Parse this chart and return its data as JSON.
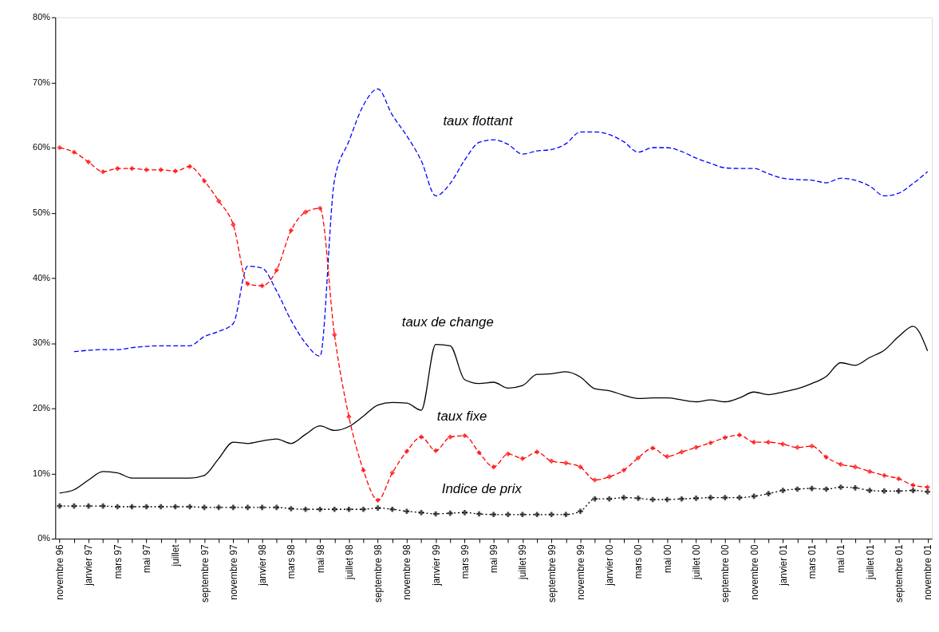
{
  "chart_data": {
    "type": "line",
    "categories": [
      "novembre 96",
      null,
      "janvier 97",
      null,
      "mars 97",
      null,
      "mai 97",
      null,
      "juillet",
      null,
      "septembre 97",
      null,
      "novembre 97",
      null,
      "janvier 98",
      null,
      "mars 98",
      null,
      "mai 98",
      null,
      "juillet 98",
      null,
      "septembre 98",
      null,
      "novembre 98",
      null,
      "janvier 99",
      null,
      "mars 99",
      null,
      "mai 99",
      null,
      "juillet 99",
      null,
      "septembre 99",
      null,
      "novembre 99",
      null,
      "janvier 00",
      null,
      "mars 00",
      null,
      "mai 00",
      null,
      "juillet 00",
      null,
      "septembre 00",
      null,
      "novembre 00",
      null,
      "janvier 01",
      null,
      "mars 01",
      null,
      "mai 01",
      null,
      "juillet 01",
      null,
      "septembre 01",
      null,
      "novembre 01"
    ],
    "series": [
      {
        "color": "#0000ff",
        "line_style": "dashed",
        "marker": "none",
        "values": [
          null,
          28.7,
          28.9,
          29.0,
          29.0,
          29.3,
          29.5,
          29.6,
          29.6,
          29.6,
          31.0,
          31.8,
          33.0,
          41.8,
          41.5,
          38.0,
          33.5,
          30.0,
          28.0,
          55.0,
          61.0,
          66.5,
          69.0,
          65.0,
          61.8,
          58.0,
          52.6,
          54.5,
          58.1,
          60.8,
          61.2,
          60.5,
          59.0,
          59.5,
          59.7,
          60.6,
          62.4,
          62.4,
          62.0,
          60.9,
          59.3,
          60.0,
          60.0,
          59.4,
          58.4,
          57.6,
          56.9,
          56.8,
          56.8,
          56.0,
          55.3,
          55.1,
          55.0,
          54.6,
          55.3,
          55.0,
          54.1,
          52.6,
          53.0,
          54.5,
          56.3
        ]
      },
      {
        "color": "#ff0000",
        "line_style": "dashed",
        "marker": "diamond",
        "values": [
          60.0,
          59.3,
          57.8,
          56.3,
          56.8,
          56.8,
          56.6,
          56.6,
          56.4,
          57.1,
          54.9,
          51.8,
          48.2,
          39.1,
          38.8,
          41.2,
          47.3,
          50.1,
          50.7,
          31.3,
          18.7,
          10.5,
          5.9,
          10.1,
          13.4,
          15.6,
          13.5,
          15.6,
          15.8,
          13.2,
          11.0,
          13.0,
          12.3,
          13.3,
          11.9,
          11.6,
          11.0,
          9.0,
          9.5,
          10.5,
          12.4,
          13.9,
          12.6,
          13.3,
          14.0,
          14.7,
          15.5,
          15.9,
          14.8,
          14.8,
          14.5,
          14.0,
          14.2,
          12.5,
          11.4,
          11.0,
          10.3,
          9.7,
          9.2,
          8.2,
          7.9
        ]
      },
      {
        "color": "#000000",
        "line_style": "solid",
        "marker": "none",
        "values": [
          7.0,
          7.5,
          9.0,
          10.3,
          10.1,
          9.3,
          9.3,
          9.3,
          9.3,
          9.3,
          9.7,
          12.3,
          14.8,
          14.6,
          15.0,
          15.3,
          14.6,
          16.0,
          17.3,
          16.6,
          17.2,
          18.8,
          20.5,
          20.9,
          20.8,
          19.7,
          29.8,
          29.6,
          24.4,
          23.8,
          24.0,
          23.1,
          23.5,
          25.2,
          25.3,
          25.6,
          24.8,
          23.0,
          22.7,
          22.0,
          21.5,
          21.6,
          21.6,
          21.3,
          21.0,
          21.3,
          21.0,
          21.6,
          22.5,
          22.1,
          22.5,
          23.0,
          23.8,
          24.9,
          27.0,
          26.6,
          27.8,
          28.9,
          31.0,
          32.6,
          28.8
        ]
      },
      {
        "color": "#000000",
        "line_style": "dotted",
        "marker": "cross",
        "values": [
          5.0,
          5.0,
          5.0,
          5.0,
          4.9,
          4.9,
          4.9,
          4.9,
          4.9,
          4.9,
          4.8,
          4.8,
          4.8,
          4.8,
          4.8,
          4.8,
          4.6,
          4.5,
          4.5,
          4.5,
          4.5,
          4.5,
          4.7,
          4.5,
          4.2,
          4.0,
          3.8,
          3.9,
          4.0,
          3.8,
          3.7,
          3.7,
          3.7,
          3.7,
          3.7,
          3.7,
          4.2,
          6.1,
          6.1,
          6.3,
          6.2,
          6.0,
          6.0,
          6.1,
          6.2,
          6.3,
          6.3,
          6.3,
          6.5,
          6.9,
          7.4,
          7.6,
          7.7,
          7.6,
          7.9,
          7.8,
          7.4,
          7.3,
          7.3,
          7.4,
          7.2
        ]
      }
    ],
    "annotations": [
      "taux flottant",
      "taux de change",
      "taux fixe",
      "Indice de prix"
    ],
    "ylim": [
      0,
      80
    ],
    "yticks": [
      {
        "value": 0,
        "label": "0%"
      },
      {
        "value": 10,
        "label": "10%"
      },
      {
        "value": 20,
        "label": "20%"
      },
      {
        "value": 30,
        "label": "30%"
      },
      {
        "value": 40,
        "label": "40%"
      },
      {
        "value": 50,
        "label": "50%"
      },
      {
        "value": 60,
        "label": "60%"
      },
      {
        "value": 70,
        "label": "70%"
      },
      {
        "value": 80,
        "label": "80%"
      }
    ],
    "grid": false
  }
}
